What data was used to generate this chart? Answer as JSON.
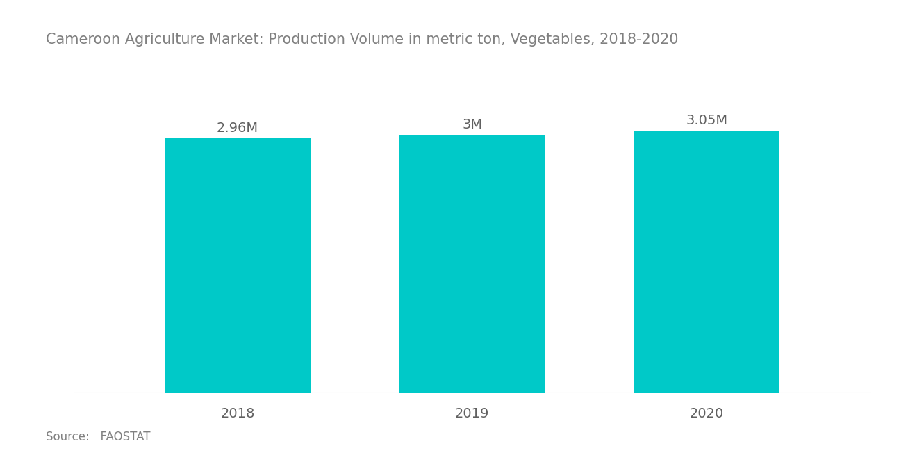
{
  "title": "Cameroon Agriculture Market: Production Volume in metric ton, Vegetables, 2018-2020",
  "categories": [
    "2018",
    "2019",
    "2020"
  ],
  "values": [
    2960000,
    3000000,
    3050000
  ],
  "labels": [
    "2.96M",
    "3M",
    "3.05M"
  ],
  "bar_color": "#00C9C8",
  "background_color": "#ffffff",
  "title_color": "#808080",
  "label_color": "#606060",
  "tick_color": "#606060",
  "source_text": "Source:   FAOSTAT",
  "title_fontsize": 15,
  "label_fontsize": 14,
  "tick_fontsize": 14,
  "source_fontsize": 12,
  "ylim": [
    0,
    3600000
  ],
  "bar_width": 0.62
}
